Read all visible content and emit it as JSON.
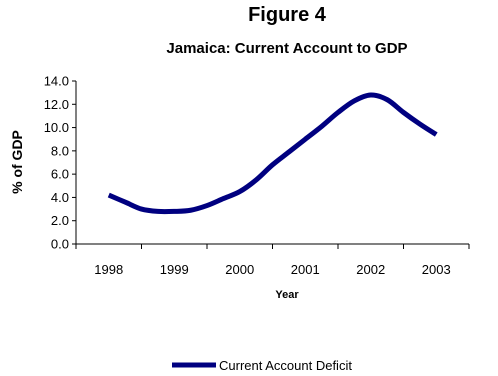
{
  "chart_data": {
    "type": "line",
    "title": "Figure 4",
    "subtitle": "Jamaica: Current Account to GDP",
    "xlabel": "Year",
    "ylabel": "% of GDP",
    "ylim": [
      0,
      14
    ],
    "yticks": [
      "0.0",
      "2.0",
      "4.0",
      "6.0",
      "8.0",
      "10.0",
      "12.0",
      "14.0"
    ],
    "xticks": [
      "1998",
      "1999",
      "2000",
      "2001",
      "2002",
      "2003"
    ],
    "grid": false,
    "legend_position": "bottom",
    "series": [
      {
        "name": "Current Account Deficit",
        "color": "#000080",
        "x": [
          1998.0,
          1998.25,
          1998.5,
          1998.75,
          1999.0,
          1999.25,
          1999.5,
          1999.75,
          2000.0,
          2000.25,
          2000.5,
          2000.75,
          2001.0,
          2001.25,
          2001.5,
          2001.75,
          2002.0,
          2002.25,
          2002.5,
          2002.75,
          2003.0
        ],
        "values": [
          4.2,
          3.6,
          3.0,
          2.8,
          2.8,
          2.9,
          3.3,
          3.9,
          4.5,
          5.5,
          6.8,
          7.9,
          9.0,
          10.1,
          11.3,
          12.3,
          12.8,
          12.4,
          11.3,
          10.3,
          9.4
        ]
      }
    ]
  }
}
